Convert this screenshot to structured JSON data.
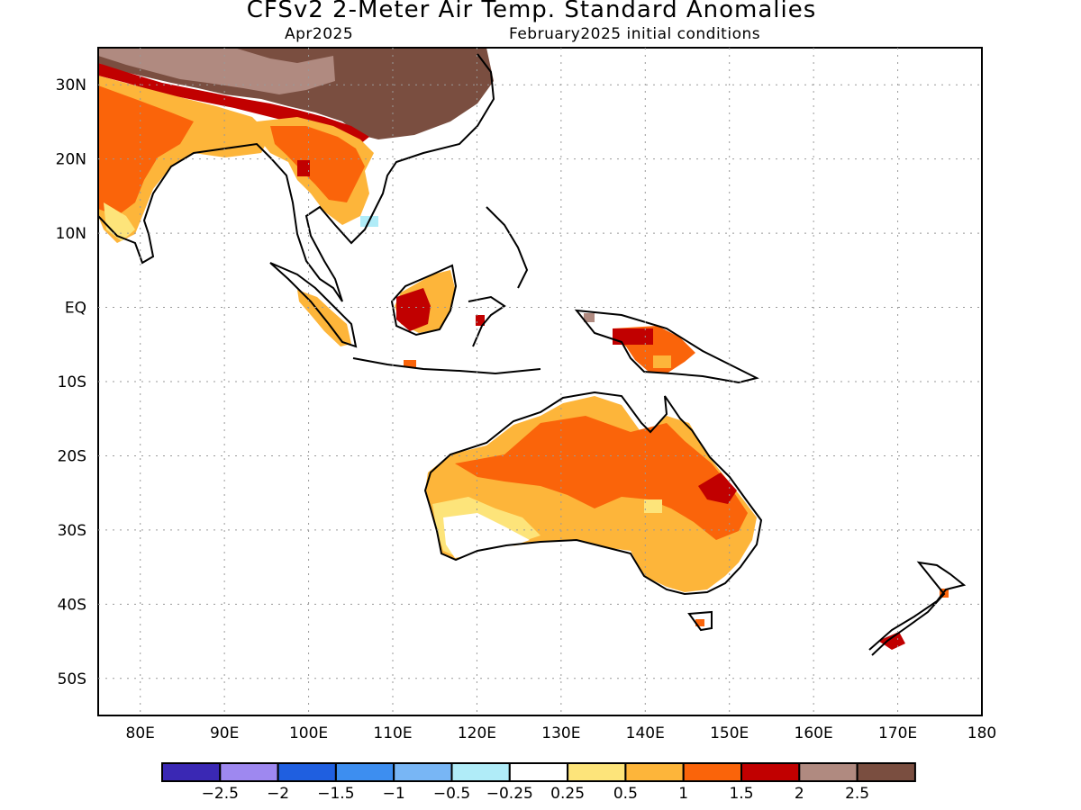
{
  "title": "CFSv2 2-Meter Air Temp. Standard Anomalies",
  "valid_month": "Apr2025",
  "initial_conditions": "February2025 initial conditions",
  "map": {
    "lon_range": [
      75,
      180
    ],
    "lat_range": [
      -55,
      35
    ],
    "lon_labels": [
      "80E",
      "90E",
      "100E",
      "110E",
      "120E",
      "130E",
      "140E",
      "150E",
      "160E",
      "170E",
      "180"
    ],
    "lat_labels": [
      "30N",
      "20N",
      "10N",
      "EQ",
      "10S",
      "20S",
      "30S",
      "40S",
      "50S"
    ]
  },
  "colorbar": {
    "colors": [
      "#3a28b4",
      "#9e88f0",
      "#1f5fe0",
      "#3d8ef0",
      "#78b6f5",
      "#b0ecf8",
      "#ffffff",
      "#fde47a",
      "#fdb53a",
      "#fa640a",
      "#c10000",
      "#b08a80",
      "#7a4e40"
    ],
    "labels": [
      "-2.5",
      "-2",
      "-1.5",
      "-1",
      "-0.5",
      "-0.25",
      "0.25",
      "0.5",
      "1",
      "1.5",
      "2",
      "2.5"
    ]
  },
  "chart_data": {
    "type": "heatmap",
    "variable": "2-Meter Air Temp. Standard Anomalies",
    "model": "CFSv2",
    "valid": "Apr2025",
    "initialized": "February2025",
    "regions": [
      {
        "region": "Tibet / western China",
        "anomaly_range": ">2.5",
        "color": "#7a4e40"
      },
      {
        "region": "Southern China margin",
        "anomaly_range": "2 to 2.5",
        "color": "#b08a80"
      },
      {
        "region": "India (north and central)",
        "anomaly_range": "0.5 to 1.5",
        "color": "#fdb53a"
      },
      {
        "region": "Myanmar / Thailand / Indochina",
        "anomaly_range": "0.5 to 2",
        "color": "#fa640a"
      },
      {
        "region": "Borneo (southwest)",
        "anomaly_range": "1.5 to 2",
        "color": "#c10000"
      },
      {
        "region": "Northern New Guinea",
        "anomaly_range": "1.5 to 2",
        "color": "#c10000"
      },
      {
        "region": "Central and northern Australia",
        "anomaly_range": "1 to 1.5",
        "color": "#fa640a"
      },
      {
        "region": "Queensland interior",
        "anomaly_range": "1.5 to 2",
        "color": "#c10000"
      },
      {
        "region": "Southern Australia / Victoria / NSW",
        "anomaly_range": "0.5 to 1",
        "color": "#fdb53a"
      },
      {
        "region": "Southwestern Australia",
        "anomaly_range": "-0.25 to 0.5",
        "color": "#ffffff"
      },
      {
        "region": "South Island, New Zealand",
        "anomaly_range": "1.5 to 2",
        "color": "#c10000"
      }
    ]
  }
}
